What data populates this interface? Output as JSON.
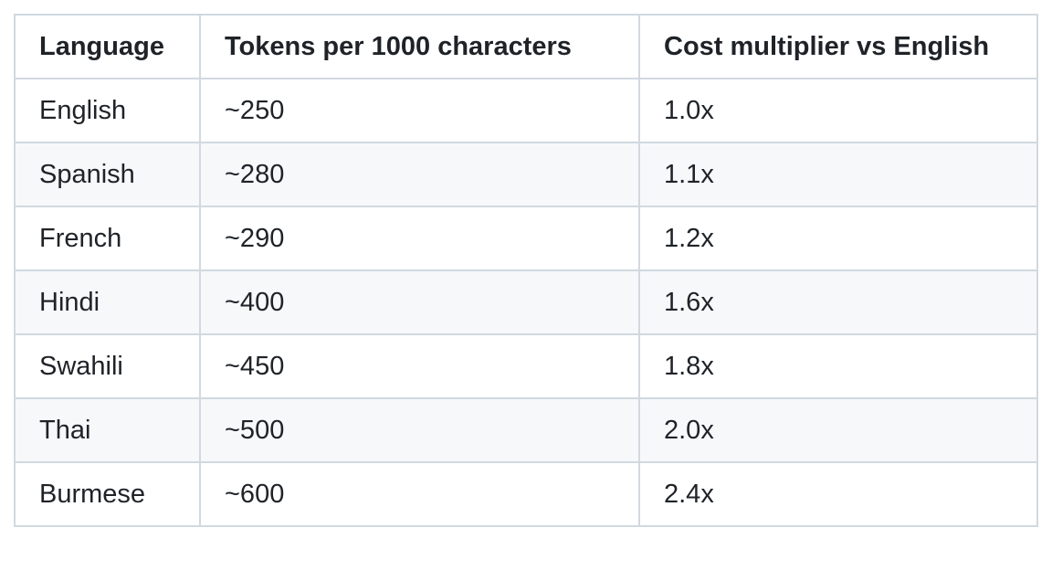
{
  "table": {
    "headers": [
      "Language",
      "Tokens per 1000 characters",
      "Cost multiplier vs English"
    ],
    "rows": [
      [
        "English",
        "~250",
        "1.0x"
      ],
      [
        "Spanish",
        "~280",
        "1.1x"
      ],
      [
        "French",
        "~290",
        "1.2x"
      ],
      [
        "Hindi",
        "~400",
        "1.6x"
      ],
      [
        "Swahili",
        "~450",
        "1.8x"
      ],
      [
        "Thai",
        "~500",
        "2.0x"
      ],
      [
        "Burmese",
        "~600",
        "2.4x"
      ]
    ]
  },
  "colors": {
    "text": "#1f2328",
    "border": "#d1d9e0",
    "row_alt": "#f6f8fa",
    "background": "#ffffff"
  }
}
